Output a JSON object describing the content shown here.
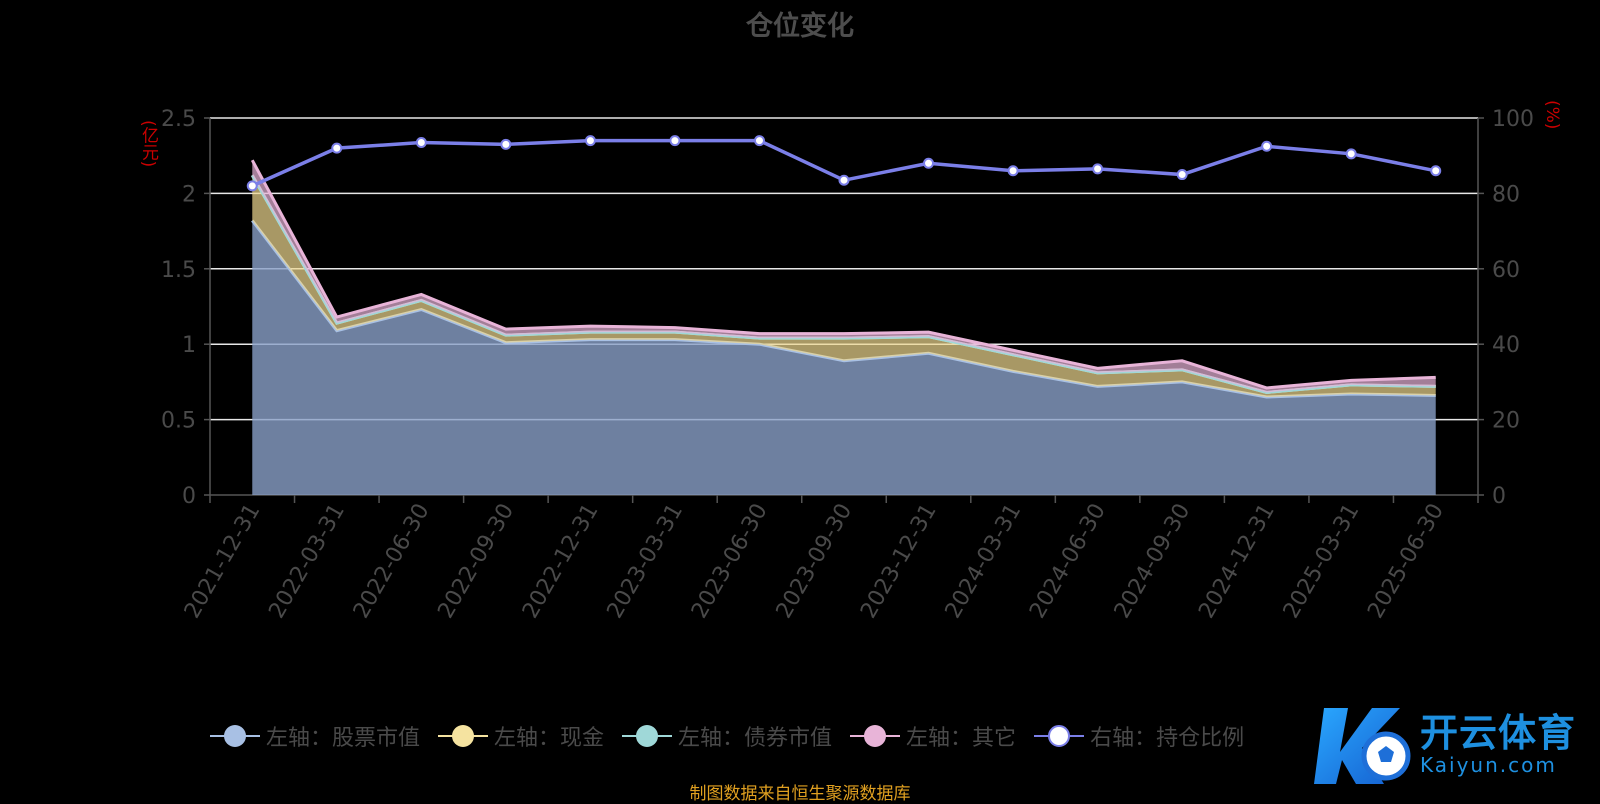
{
  "title": "仓位变化",
  "left_unit": "(亿元)",
  "right_unit": "(%)",
  "source_note": "制图数据来自恒生聚源数据库",
  "watermark": {
    "name": "开云体育",
    "domain": "Kaiyun.com"
  },
  "legend": [
    {
      "label": "左轴：股票市值",
      "color": "#a8c0e4",
      "fill": "#a8c0e4"
    },
    {
      "label": "左轴：现金",
      "color": "#f5e3a0",
      "fill": "#f5e3a0"
    },
    {
      "label": "左轴：债券市值",
      "color": "#9fd8d8",
      "fill": "#9fd8d8"
    },
    {
      "label": "左轴：其它",
      "color": "#e8b4d8",
      "fill": "#e8b4d8"
    },
    {
      "label": "右轴：持仓比例",
      "color": "#7b7fe8",
      "fill": "#ffffff"
    }
  ],
  "chart_data": {
    "type": "area",
    "stacked": true,
    "x": [
      "2021-12-31",
      "2022-03-31",
      "2022-06-30",
      "2022-09-30",
      "2022-12-31",
      "2023-03-31",
      "2023-06-30",
      "2023-09-30",
      "2023-12-31",
      "2024-03-31",
      "2024-06-30",
      "2024-09-30",
      "2024-12-31",
      "2025-03-31",
      "2025-06-30"
    ],
    "y_left": {
      "min": 0,
      "max": 2.5,
      "ticks": [
        "0",
        "0.5",
        "1",
        "1.5",
        "2",
        "2.5"
      ]
    },
    "y_right": {
      "min": 0,
      "max": 100,
      "ticks": [
        "0",
        "20",
        "40",
        "60",
        "80",
        "100"
      ]
    },
    "series": [
      {
        "name": "左轴：股票市值",
        "axis": "left",
        "color": "#a8c0e4",
        "values": [
          1.82,
          1.09,
          1.23,
          1.01,
          1.03,
          1.03,
          1.0,
          0.89,
          0.94,
          0.82,
          0.72,
          0.75,
          0.65,
          0.67,
          0.66
        ]
      },
      {
        "name": "左轴：现金",
        "axis": "left",
        "color": "#f5e3a0",
        "values": [
          0.3,
          0.05,
          0.06,
          0.05,
          0.05,
          0.05,
          0.04,
          0.15,
          0.11,
          0.11,
          0.09,
          0.08,
          0.03,
          0.06,
          0.06
        ]
      },
      {
        "name": "左轴：债券市值",
        "axis": "left",
        "color": "#9fd8d8",
        "values": [
          0,
          0,
          0,
          0,
          0,
          0,
          0,
          0,
          0,
          0,
          0,
          0,
          0,
          0,
          0
        ]
      },
      {
        "name": "左轴：其它",
        "axis": "left",
        "color": "#e8b4d8",
        "values": [
          0.1,
          0.04,
          0.04,
          0.04,
          0.04,
          0.03,
          0.03,
          0.03,
          0.03,
          0.03,
          0.03,
          0.06,
          0.03,
          0.03,
          0.06
        ]
      },
      {
        "name": "右轴：持仓比例",
        "axis": "right",
        "color": "#7b7fe8",
        "values": [
          82,
          92,
          93.5,
          93,
          94,
          94,
          94,
          83.5,
          88,
          86,
          86.5,
          85,
          92.5,
          90.5,
          86
        ]
      }
    ]
  }
}
